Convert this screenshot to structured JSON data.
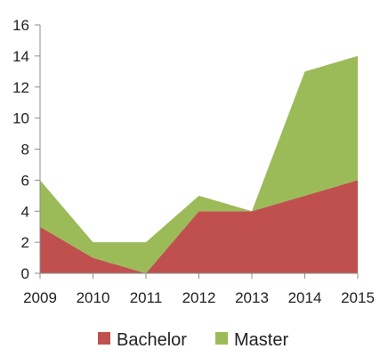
{
  "chart_data": {
    "type": "area",
    "stacked": true,
    "x": [
      "2009",
      "2010",
      "2011",
      "2012",
      "2013",
      "2014",
      "2015"
    ],
    "series": [
      {
        "name": "Bachelor",
        "values": [
          3,
          1,
          0,
          4,
          4,
          5,
          6
        ],
        "color": "#c0504d"
      },
      {
        "name": "Master",
        "values": [
          3,
          1,
          2,
          1,
          0,
          8,
          8
        ],
        "color": "#9bbb59"
      }
    ],
    "ylim": [
      0,
      16
    ],
    "yticks": [
      "0",
      "2",
      "4",
      "6",
      "8",
      "10",
      "12",
      "14",
      "16"
    ],
    "grid": false,
    "legend_position": "bottom"
  }
}
